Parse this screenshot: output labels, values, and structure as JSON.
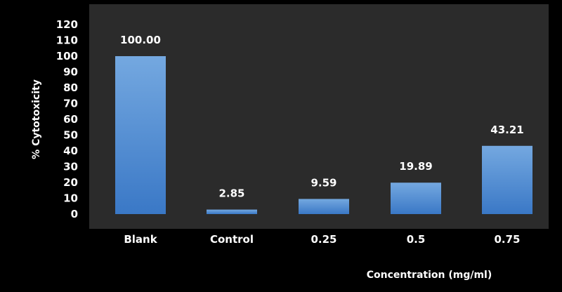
{
  "chart_data": {
    "type": "bar",
    "title": "",
    "xlabel": "Concentration (mg/ml)",
    "ylabel": "% Cytotoxicity",
    "categories": [
      "Blank",
      "Control",
      "0.25",
      "0.5",
      "0.75"
    ],
    "values": [
      100.0,
      2.85,
      9.59,
      19.89,
      43.21
    ],
    "data_labels": [
      "100.00",
      "2.85",
      "9.59",
      "19.89",
      "43.21"
    ],
    "ylim": [
      0,
      120
    ],
    "yticks": [
      "0",
      "10",
      "20",
      "30",
      "40",
      "50",
      "60",
      "70",
      "80",
      "90",
      "100",
      "110",
      "120"
    ],
    "grid": false,
    "legend": "none"
  },
  "colors": {
    "background": "#000000",
    "plot_area": "#2b2b2b",
    "bar_top": "#74a8e0",
    "bar_bottom": "#3a78c6",
    "text": "#ffffff"
  }
}
